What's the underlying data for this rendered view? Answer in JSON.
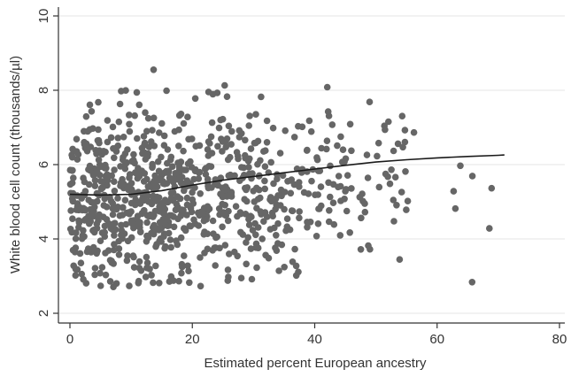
{
  "chart_data": {
    "type": "scatter",
    "title": "",
    "xlabel": "Estimated percent European ancestry",
    "ylabel": "White blood cell count (thousands/µl)",
    "xlim": [
      0,
      80
    ],
    "ylim": [
      2,
      10
    ],
    "x_ticks": [
      0,
      20,
      40,
      60,
      80
    ],
    "y_ticks": [
      2,
      4,
      6,
      8,
      10
    ],
    "grid": "horizontal",
    "point_color": "#666666",
    "curve_color": "#1a1a1a",
    "n_points": 900,
    "trend_curve": {
      "x": [
        0,
        5,
        10,
        15,
        20,
        25,
        30,
        35,
        40,
        45,
        50,
        55,
        60,
        65,
        70,
        71
      ],
      "y": [
        5.2,
        5.18,
        5.2,
        5.3,
        5.45,
        5.58,
        5.68,
        5.78,
        5.88,
        5.98,
        6.07,
        6.13,
        6.18,
        6.22,
        6.25,
        6.26
      ]
    }
  }
}
